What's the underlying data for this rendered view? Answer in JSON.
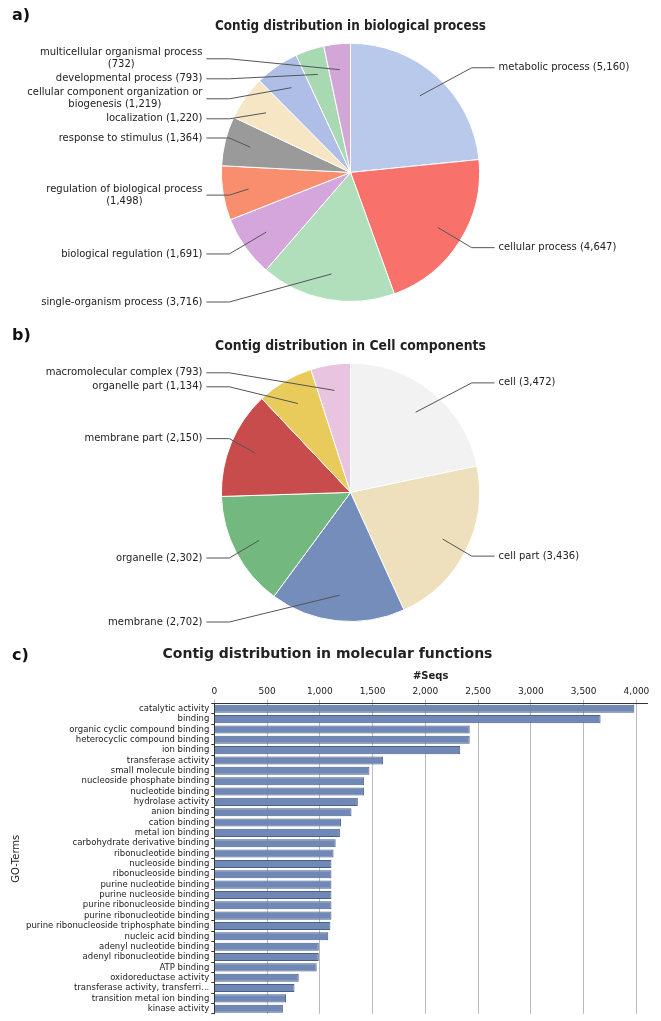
{
  "chart_data": [
    {
      "type": "pie",
      "title": "Contig distribution in biological process",
      "annotations": [
        "a)"
      ],
      "value_labels": [
        "(5,160)",
        "(4,647)",
        "(3,716)",
        "(1,691)",
        "(1,498)",
        "(1,364)",
        "(1,220)",
        "(1,219)",
        "(793)",
        "(732)"
      ],
      "categories": [
        "metabolic process",
        "cellular process",
        "single-organism process",
        "biological regulation",
        "regulation of biological process",
        "response to stimulus",
        "localization",
        "cellular component organization or biogenesis",
        "developmental process",
        "multicellular organismal process"
      ],
      "values": [
        5160,
        4647,
        3716,
        1691,
        1498,
        1364,
        1220,
        1219,
        793,
        732
      ],
      "colors": [
        "#b8c9ec",
        "#f8716b",
        "#b2dfbb",
        "#d4a6dc",
        "#f98e6e",
        "#9a9a9a",
        "#f7e6c4",
        "#aebee6",
        "#a9d9b2",
        "#d2a6d6"
      ]
    },
    {
      "type": "pie",
      "title": "Contig distribution in Cell components",
      "annotations": [
        "b)"
      ],
      "value_labels": [
        "(3,472)",
        "(3,436)",
        "(2,702)",
        "(2,302)",
        "(2,150)",
        "(1,134)",
        "(793)"
      ],
      "categories": [
        "cell",
        "cell part",
        "membrane",
        "organelle",
        "membrane part",
        "organelle part",
        "macromolecular complex"
      ],
      "values": [
        3472,
        3436,
        2702,
        2302,
        2150,
        1134,
        793
      ],
      "colors": [
        "#f2f2f2",
        "#eedfbd",
        "#748dbb",
        "#73b87e",
        "#c94c4c",
        "#e9cb5b",
        "#e8c4e0"
      ]
    },
    {
      "type": "bar",
      "orientation": "horizontal",
      "title": "Contig distribution in molecular functions",
      "annotations": [
        "c)"
      ],
      "xlabel": "#Seqs",
      "ylabel": "GO-Terms",
      "grid": "x",
      "categories": [
        "catalytic activity",
        "binding",
        "organic cyclic compound binding",
        "heterocyclic compound binding",
        "ion binding",
        "transferase activity",
        "small molecule binding",
        "nucleoside phosphate binding",
        "nucleotide binding",
        "hydrolase activity",
        "anion binding",
        "cation binding",
        "metal ion binding",
        "carbohydrate derivative binding",
        "ribonucleotide binding",
        "nucleoside binding",
        "ribonucleoside binding",
        "purine nucleotide binding",
        "purine nucleoside binding",
        "purine ribonucleoside binding",
        "purine ribonucleotide binding",
        "purine ribonucleoside triphosphate binding",
        "nucleic acid binding",
        "adenyl nucleotide binding",
        "adenyl ribonucleotide binding",
        "ATP binding",
        "oxidoreductase activity",
        "transferase activity, transferri...",
        "transition metal ion binding",
        "kinase activity"
      ],
      "values": [
        3980,
        3660,
        2420,
        2420,
        2330,
        1600,
        1470,
        1420,
        1420,
        1360,
        1300,
        1200,
        1190,
        1150,
        1130,
        1110,
        1110,
        1110,
        1110,
        1110,
        1110,
        1100,
        1080,
        990,
        990,
        970,
        800,
        760,
        680,
        650
      ],
      "color": "#6f88b6",
      "xlim": [
        0,
        4100
      ],
      "xticks": [
        0,
        500,
        {
          "value": 1000,
          "label": "1,000"
        },
        {
          "value": 1500,
          "label": "1,500"
        },
        {
          "value": 2000,
          "label": "2,000"
        },
        {
          "value": 2500,
          "label": "2,500"
        },
        {
          "value": 3000,
          "label": "3,000"
        },
        {
          "value": 3500,
          "label": "3,500"
        },
        {
          "value": 4000,
          "label": "4,000"
        }
      ]
    }
  ]
}
